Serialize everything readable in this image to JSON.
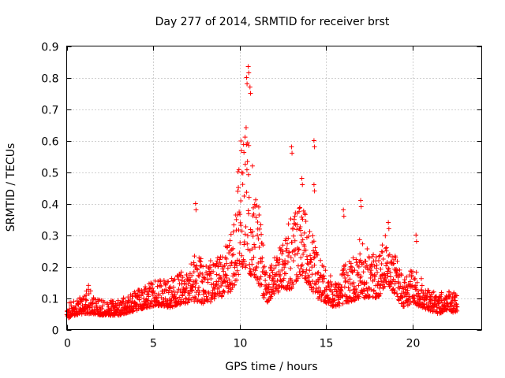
{
  "chart_data": {
    "type": "scatter",
    "title": "Day 277 of 2014, SRMTID for receiver brst",
    "xlabel": "GPS time / hours",
    "ylabel": "SRMTID / TECUs",
    "xlim": [
      0,
      24
    ],
    "ylim": [
      0,
      0.9
    ],
    "x_ticks": [
      "0",
      "5",
      "10",
      "15",
      "20"
    ],
    "y_ticks": [
      "0",
      "0.1",
      "0.2",
      "0.3",
      "0.4",
      "0.5",
      "0.6",
      "0.7",
      "0.8",
      "0.9"
    ],
    "grid": true,
    "marker": "+",
    "marker_color": "#ff0000",
    "point_count": 1800,
    "envelope": {
      "x": [
        0,
        0.5,
        1,
        1.3,
        1.5,
        2,
        3,
        4,
        5,
        6,
        7,
        7.5,
        8,
        9,
        9.5,
        10,
        10.3,
        10.6,
        11,
        11.5,
        12,
        12.5,
        13,
        13.5,
        14,
        14.5,
        15,
        15.5,
        16,
        16.5,
        17,
        17.5,
        18,
        18.5,
        19,
        19.5,
        20,
        20.5,
        21,
        21.5,
        22,
        22.3,
        22.6
      ],
      "base": [
        0.05,
        0.06,
        0.07,
        0.08,
        0.07,
        0.06,
        0.06,
        0.08,
        0.1,
        0.1,
        0.12,
        0.14,
        0.12,
        0.15,
        0.18,
        0.3,
        0.35,
        0.3,
        0.25,
        0.12,
        0.15,
        0.18,
        0.2,
        0.25,
        0.2,
        0.15,
        0.12,
        0.1,
        0.12,
        0.14,
        0.16,
        0.15,
        0.14,
        0.2,
        0.15,
        0.1,
        0.12,
        0.1,
        0.08,
        0.07,
        0.08,
        0.07,
        0.08
      ],
      "spread": [
        0.03,
        0.03,
        0.04,
        0.06,
        0.04,
        0.03,
        0.03,
        0.04,
        0.05,
        0.06,
        0.07,
        0.1,
        0.08,
        0.09,
        0.12,
        0.25,
        0.3,
        0.25,
        0.18,
        0.08,
        0.08,
        0.1,
        0.15,
        0.15,
        0.12,
        0.1,
        0.07,
        0.06,
        0.08,
        0.1,
        0.12,
        0.1,
        0.08,
        0.1,
        0.08,
        0.06,
        0.07,
        0.06,
        0.04,
        0.04,
        0.04,
        0.04,
        0.04
      ]
    },
    "peaks": [
      {
        "x": 7.45,
        "y": 0.4
      },
      {
        "x": 10.4,
        "y": 0.8
      },
      {
        "x": 10.5,
        "y": 0.835
      },
      {
        "x": 10.6,
        "y": 0.77
      },
      {
        "x": 13.0,
        "y": 0.58
      },
      {
        "x": 13.6,
        "y": 0.48
      },
      {
        "x": 14.3,
        "y": 0.6
      },
      {
        "x": 14.3,
        "y": 0.46
      },
      {
        "x": 16.0,
        "y": 0.38
      },
      {
        "x": 17.0,
        "y": 0.41
      },
      {
        "x": 18.6,
        "y": 0.34
      },
      {
        "x": 20.2,
        "y": 0.3
      }
    ]
  }
}
